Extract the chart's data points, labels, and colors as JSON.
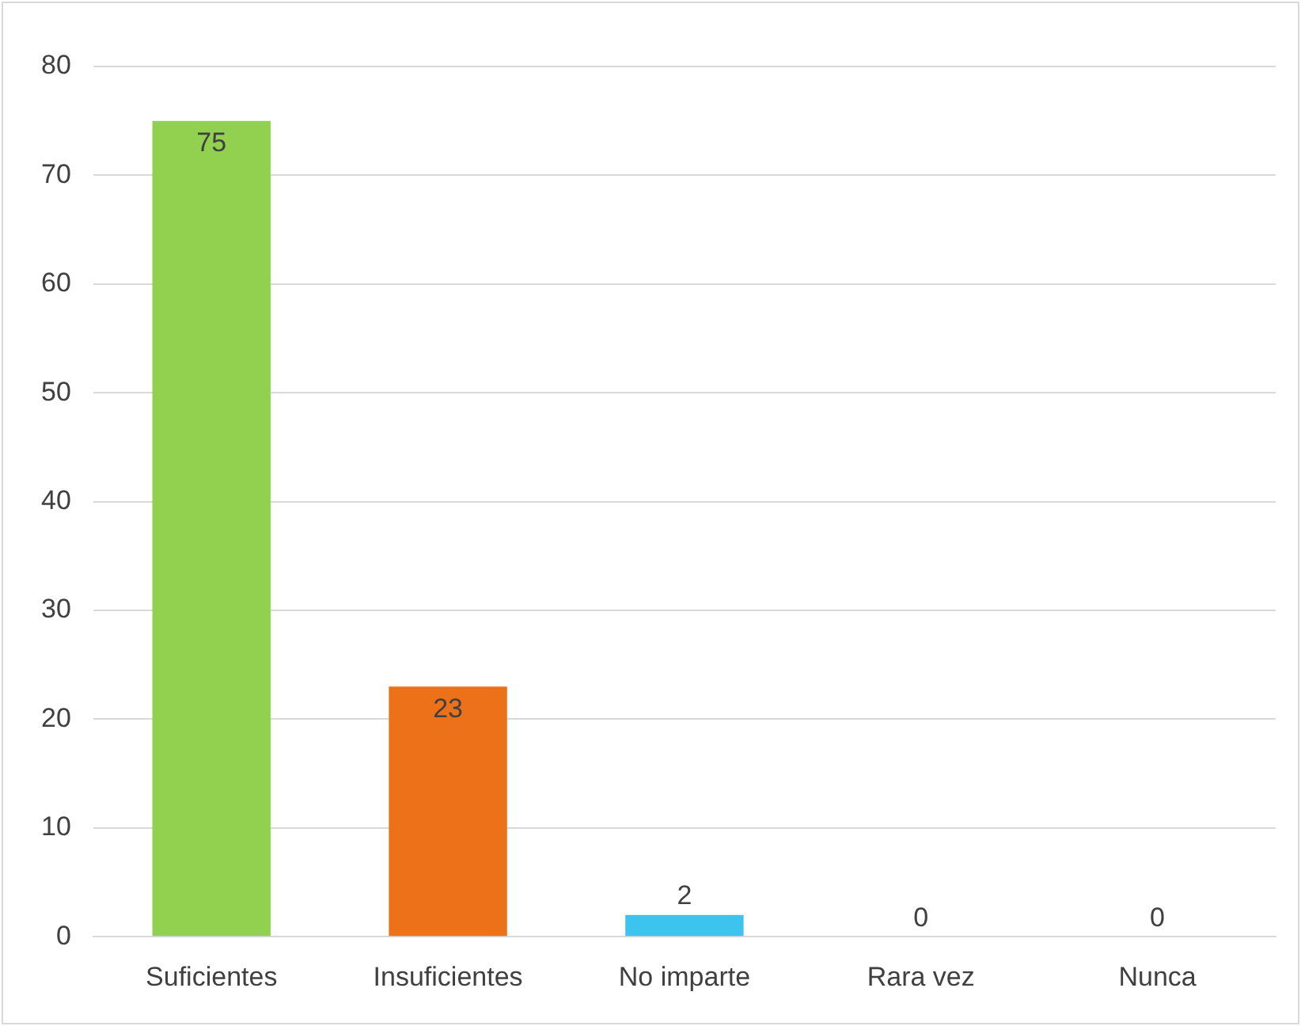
{
  "chart_data": {
    "type": "bar",
    "categories": [
      "Suficientes",
      "Insuficientes",
      "No imparte",
      "Rara vez",
      "Nunca"
    ],
    "values": [
      75,
      23,
      2,
      0,
      0
    ],
    "colors": [
      "#92d050",
      "#ed7119",
      "#3cc3ee",
      "#92d050",
      "#92d050"
    ],
    "ylim": [
      0,
      80
    ],
    "yticks": [
      0,
      10,
      20,
      30,
      40,
      50,
      60,
      70,
      80
    ],
    "grid": "y",
    "data_labels": true,
    "legend": false
  }
}
